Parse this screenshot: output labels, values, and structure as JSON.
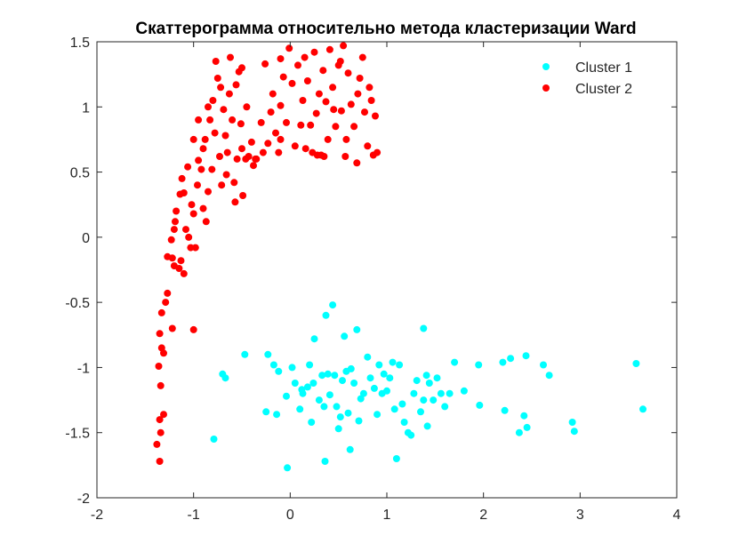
{
  "chart_data": {
    "type": "scatter",
    "title": "Скаттерограмма относительно метода кластеризации Ward",
    "xlabel": "",
    "ylabel": "",
    "xlim": [
      -2,
      4
    ],
    "ylim": [
      -2,
      1.5
    ],
    "xticks": [
      "-2",
      "-1",
      "0",
      "1",
      "2",
      "3",
      "4"
    ],
    "yticks": [
      "-2",
      "-1.5",
      "-1",
      "-0.5",
      "0",
      "0.5",
      "1",
      "1.5"
    ],
    "grid": false,
    "legend": "top-right",
    "series": [
      {
        "name": "Cluster 1",
        "color": "#00ffff",
        "points": [
          [
            -0.79,
            -1.55
          ],
          [
            -0.7,
            -1.05
          ],
          [
            -0.67,
            -1.08
          ],
          [
            -0.47,
            -0.9
          ],
          [
            -0.23,
            -0.9
          ],
          [
            -0.25,
            -1.34
          ],
          [
            -0.17,
            -0.98
          ],
          [
            -0.14,
            -1.36
          ],
          [
            -0.12,
            -1.03
          ],
          [
            -0.04,
            -1.22
          ],
          [
            -0.03,
            -1.77
          ],
          [
            0.02,
            -1.0
          ],
          [
            0.05,
            -1.12
          ],
          [
            0.1,
            -1.32
          ],
          [
            0.12,
            -1.17
          ],
          [
            0.13,
            -1.2
          ],
          [
            0.18,
            -1.15
          ],
          [
            0.2,
            -0.98
          ],
          [
            0.22,
            -1.42
          ],
          [
            0.24,
            -1.12
          ],
          [
            0.25,
            -0.78
          ],
          [
            0.3,
            -1.25
          ],
          [
            0.33,
            -1.06
          ],
          [
            0.35,
            -1.3
          ],
          [
            0.37,
            -0.6
          ],
          [
            0.39,
            -1.05
          ],
          [
            0.41,
            -1.21
          ],
          [
            0.44,
            -0.52
          ],
          [
            0.46,
            -1.06
          ],
          [
            0.48,
            -1.3
          ],
          [
            0.5,
            -1.47
          ],
          [
            0.52,
            -1.38
          ],
          [
            0.54,
            -1.1
          ],
          [
            0.56,
            -0.76
          ],
          [
            0.58,
            -1.03
          ],
          [
            0.6,
            -1.35
          ],
          [
            0.63,
            -1.01
          ],
          [
            0.66,
            -1.12
          ],
          [
            0.69,
            -0.71
          ],
          [
            0.71,
            -1.41
          ],
          [
            0.73,
            -1.24
          ],
          [
            0.76,
            -1.2
          ],
          [
            0.8,
            -0.92
          ],
          [
            0.83,
            -1.08
          ],
          [
            0.87,
            -1.16
          ],
          [
            0.9,
            -1.36
          ],
          [
            0.92,
            -0.98
          ],
          [
            0.95,
            -1.2
          ],
          [
            0.97,
            -1.05
          ],
          [
            1.0,
            -1.18
          ],
          [
            1.03,
            -1.08
          ],
          [
            1.06,
            -0.96
          ],
          [
            1.08,
            -1.32
          ],
          [
            1.1,
            -1.7
          ],
          [
            1.13,
            -0.98
          ],
          [
            1.16,
            -1.28
          ],
          [
            1.18,
            -1.42
          ],
          [
            1.22,
            -1.5
          ],
          [
            1.25,
            -1.52
          ],
          [
            1.28,
            -1.2
          ],
          [
            1.31,
            -1.1
          ],
          [
            1.35,
            -1.34
          ],
          [
            1.38,
            -0.7
          ],
          [
            1.41,
            -1.06
          ],
          [
            1.44,
            -1.12
          ],
          [
            1.48,
            -1.25
          ],
          [
            1.52,
            -1.08
          ],
          [
            1.56,
            -1.2
          ],
          [
            1.6,
            -1.3
          ],
          [
            1.65,
            -1.2
          ],
          [
            1.7,
            -0.96
          ],
          [
            1.8,
            -1.18
          ],
          [
            1.95,
            -0.98
          ],
          [
            1.96,
            -1.29
          ],
          [
            2.2,
            -0.96
          ],
          [
            2.22,
            -1.33
          ],
          [
            2.28,
            -0.93
          ],
          [
            2.37,
            -1.5
          ],
          [
            2.42,
            -1.37
          ],
          [
            2.44,
            -0.91
          ],
          [
            2.45,
            -1.46
          ],
          [
            2.62,
            -0.98
          ],
          [
            2.68,
            -1.06
          ],
          [
            2.92,
            -1.42
          ],
          [
            2.94,
            -1.49
          ],
          [
            3.58,
            -0.97
          ],
          [
            3.65,
            -1.32
          ],
          [
            0.36,
            -1.72
          ],
          [
            0.62,
            -1.63
          ],
          [
            1.38,
            -1.25
          ],
          [
            1.42,
            -1.45
          ]
        ]
      },
      {
        "name": "Cluster 2",
        "color": "#ff0000",
        "points": [
          [
            -1.38,
            -1.59
          ],
          [
            -1.35,
            -1.4
          ],
          [
            -1.34,
            -1.5
          ],
          [
            -1.35,
            -1.72
          ],
          [
            -1.34,
            -1.14
          ],
          [
            -1.36,
            -0.99
          ],
          [
            -1.33,
            -0.85
          ],
          [
            -1.35,
            -0.74
          ],
          [
            -1.31,
            -1.36
          ],
          [
            -1.31,
            -0.89
          ],
          [
            -1.33,
            -0.58
          ],
          [
            -1.29,
            -0.5
          ],
          [
            -1.27,
            -0.43
          ],
          [
            -1.22,
            -0.7
          ],
          [
            -1.27,
            -0.15
          ],
          [
            -1.22,
            -0.16
          ],
          [
            -1.2,
            -0.22
          ],
          [
            -1.15,
            -0.24
          ],
          [
            -1.13,
            -0.18
          ],
          [
            -1.1,
            -0.28
          ],
          [
            -1.23,
            -0.02
          ],
          [
            -1.2,
            0.06
          ],
          [
            -1.19,
            0.12
          ],
          [
            -1.18,
            0.2
          ],
          [
            -1.14,
            0.33
          ],
          [
            -1.12,
            0.45
          ],
          [
            -1.1,
            0.34
          ],
          [
            -1.08,
            0.06
          ],
          [
            -1.05,
            0.0
          ],
          [
            -1.03,
            -0.08
          ],
          [
            -1.02,
            0.25
          ],
          [
            -1.0,
            0.18
          ],
          [
            -1.0,
            -0.71
          ],
          [
            -0.98,
            -0.08
          ],
          [
            -0.96,
            0.4
          ],
          [
            -0.95,
            0.59
          ],
          [
            -0.92,
            0.52
          ],
          [
            -0.9,
            0.68
          ],
          [
            -0.88,
            0.75
          ],
          [
            -0.87,
            0.12
          ],
          [
            -0.85,
            0.35
          ],
          [
            -0.83,
            0.9
          ],
          [
            -0.81,
            0.52
          ],
          [
            -0.8,
            1.05
          ],
          [
            -0.77,
            1.35
          ],
          [
            -0.75,
            1.22
          ],
          [
            -0.73,
            0.62
          ],
          [
            -0.71,
            0.4
          ],
          [
            -0.69,
            0.98
          ],
          [
            -0.67,
            0.78
          ],
          [
            -0.65,
            0.65
          ],
          [
            -0.63,
            1.1
          ],
          [
            -0.6,
            0.9
          ],
          [
            -0.58,
            0.42
          ],
          [
            -0.56,
            1.17
          ],
          [
            -0.55,
            0.6
          ],
          [
            -0.53,
            1.27
          ],
          [
            -0.51,
            0.87
          ],
          [
            -0.5,
            0.68
          ],
          [
            -0.49,
            0.32
          ],
          [
            -0.46,
            0.6
          ],
          [
            -0.43,
            0.62
          ],
          [
            -0.4,
            0.73
          ],
          [
            -0.38,
            0.55
          ],
          [
            -0.35,
            0.6
          ],
          [
            -0.28,
            0.65
          ],
          [
            -0.26,
            1.33
          ],
          [
            -0.23,
            0.72
          ],
          [
            -0.2,
            0.96
          ],
          [
            -0.18,
            1.1
          ],
          [
            -0.15,
            0.8
          ],
          [
            -0.12,
            0.65
          ],
          [
            -0.1,
            1.01
          ],
          [
            -0.07,
            1.23
          ],
          [
            -0.04,
            0.88
          ],
          [
            -0.01,
            1.45
          ],
          [
            0.02,
            1.18
          ],
          [
            0.05,
            0.7
          ],
          [
            0.08,
            1.32
          ],
          [
            0.11,
            0.86
          ],
          [
            0.13,
            1.05
          ],
          [
            0.16,
            0.68
          ],
          [
            0.18,
            1.2
          ],
          [
            0.21,
            0.86
          ],
          [
            0.23,
            0.65
          ],
          [
            0.25,
            1.42
          ],
          [
            0.27,
            0.95
          ],
          [
            0.3,
            1.1
          ],
          [
            0.32,
            0.63
          ],
          [
            0.34,
            1.28
          ],
          [
            0.37,
            1.04
          ],
          [
            0.39,
            0.75
          ],
          [
            0.41,
            1.44
          ],
          [
            0.44,
            1.15
          ],
          [
            0.47,
            0.85
          ],
          [
            0.5,
            1.32
          ],
          [
            0.53,
            0.97
          ],
          [
            0.55,
            1.47
          ],
          [
            0.57,
            0.62
          ],
          [
            0.6,
            1.26
          ],
          [
            0.63,
            1.02
          ],
          [
            0.66,
            0.85
          ],
          [
            0.69,
            0.57
          ],
          [
            0.72,
            1.22
          ],
          [
            0.75,
            1.38
          ],
          [
            0.77,
            0.96
          ],
          [
            0.8,
            0.7
          ],
          [
            0.82,
            1.15
          ],
          [
            0.84,
            1.05
          ],
          [
            0.86,
            0.63
          ],
          [
            0.88,
            0.93
          ],
          [
            0.9,
            0.65
          ],
          [
            -0.5,
            1.3
          ],
          [
            -0.62,
            1.38
          ],
          [
            -0.72,
            1.15
          ],
          [
            -0.95,
            0.9
          ],
          [
            -1.0,
            0.75
          ],
          [
            -0.85,
            1.0
          ],
          [
            -0.57,
            0.27
          ],
          [
            -0.9,
            0.22
          ],
          [
            -1.06,
            0.54
          ],
          [
            -0.78,
            0.8
          ],
          [
            -0.66,
            0.48
          ],
          [
            -0.45,
            1.0
          ],
          [
            -0.3,
            0.88
          ],
          [
            -0.1,
            0.75
          ],
          [
            0.35,
            0.62
          ],
          [
            0.52,
            1.35
          ],
          [
            0.7,
            1.1
          ],
          [
            0.58,
            0.75
          ],
          [
            0.28,
            0.63
          ],
          [
            0.15,
            1.38
          ],
          [
            0.45,
            0.98
          ],
          [
            -0.1,
            1.37
          ],
          [
            -0.36,
            0.6
          ]
        ]
      }
    ]
  }
}
